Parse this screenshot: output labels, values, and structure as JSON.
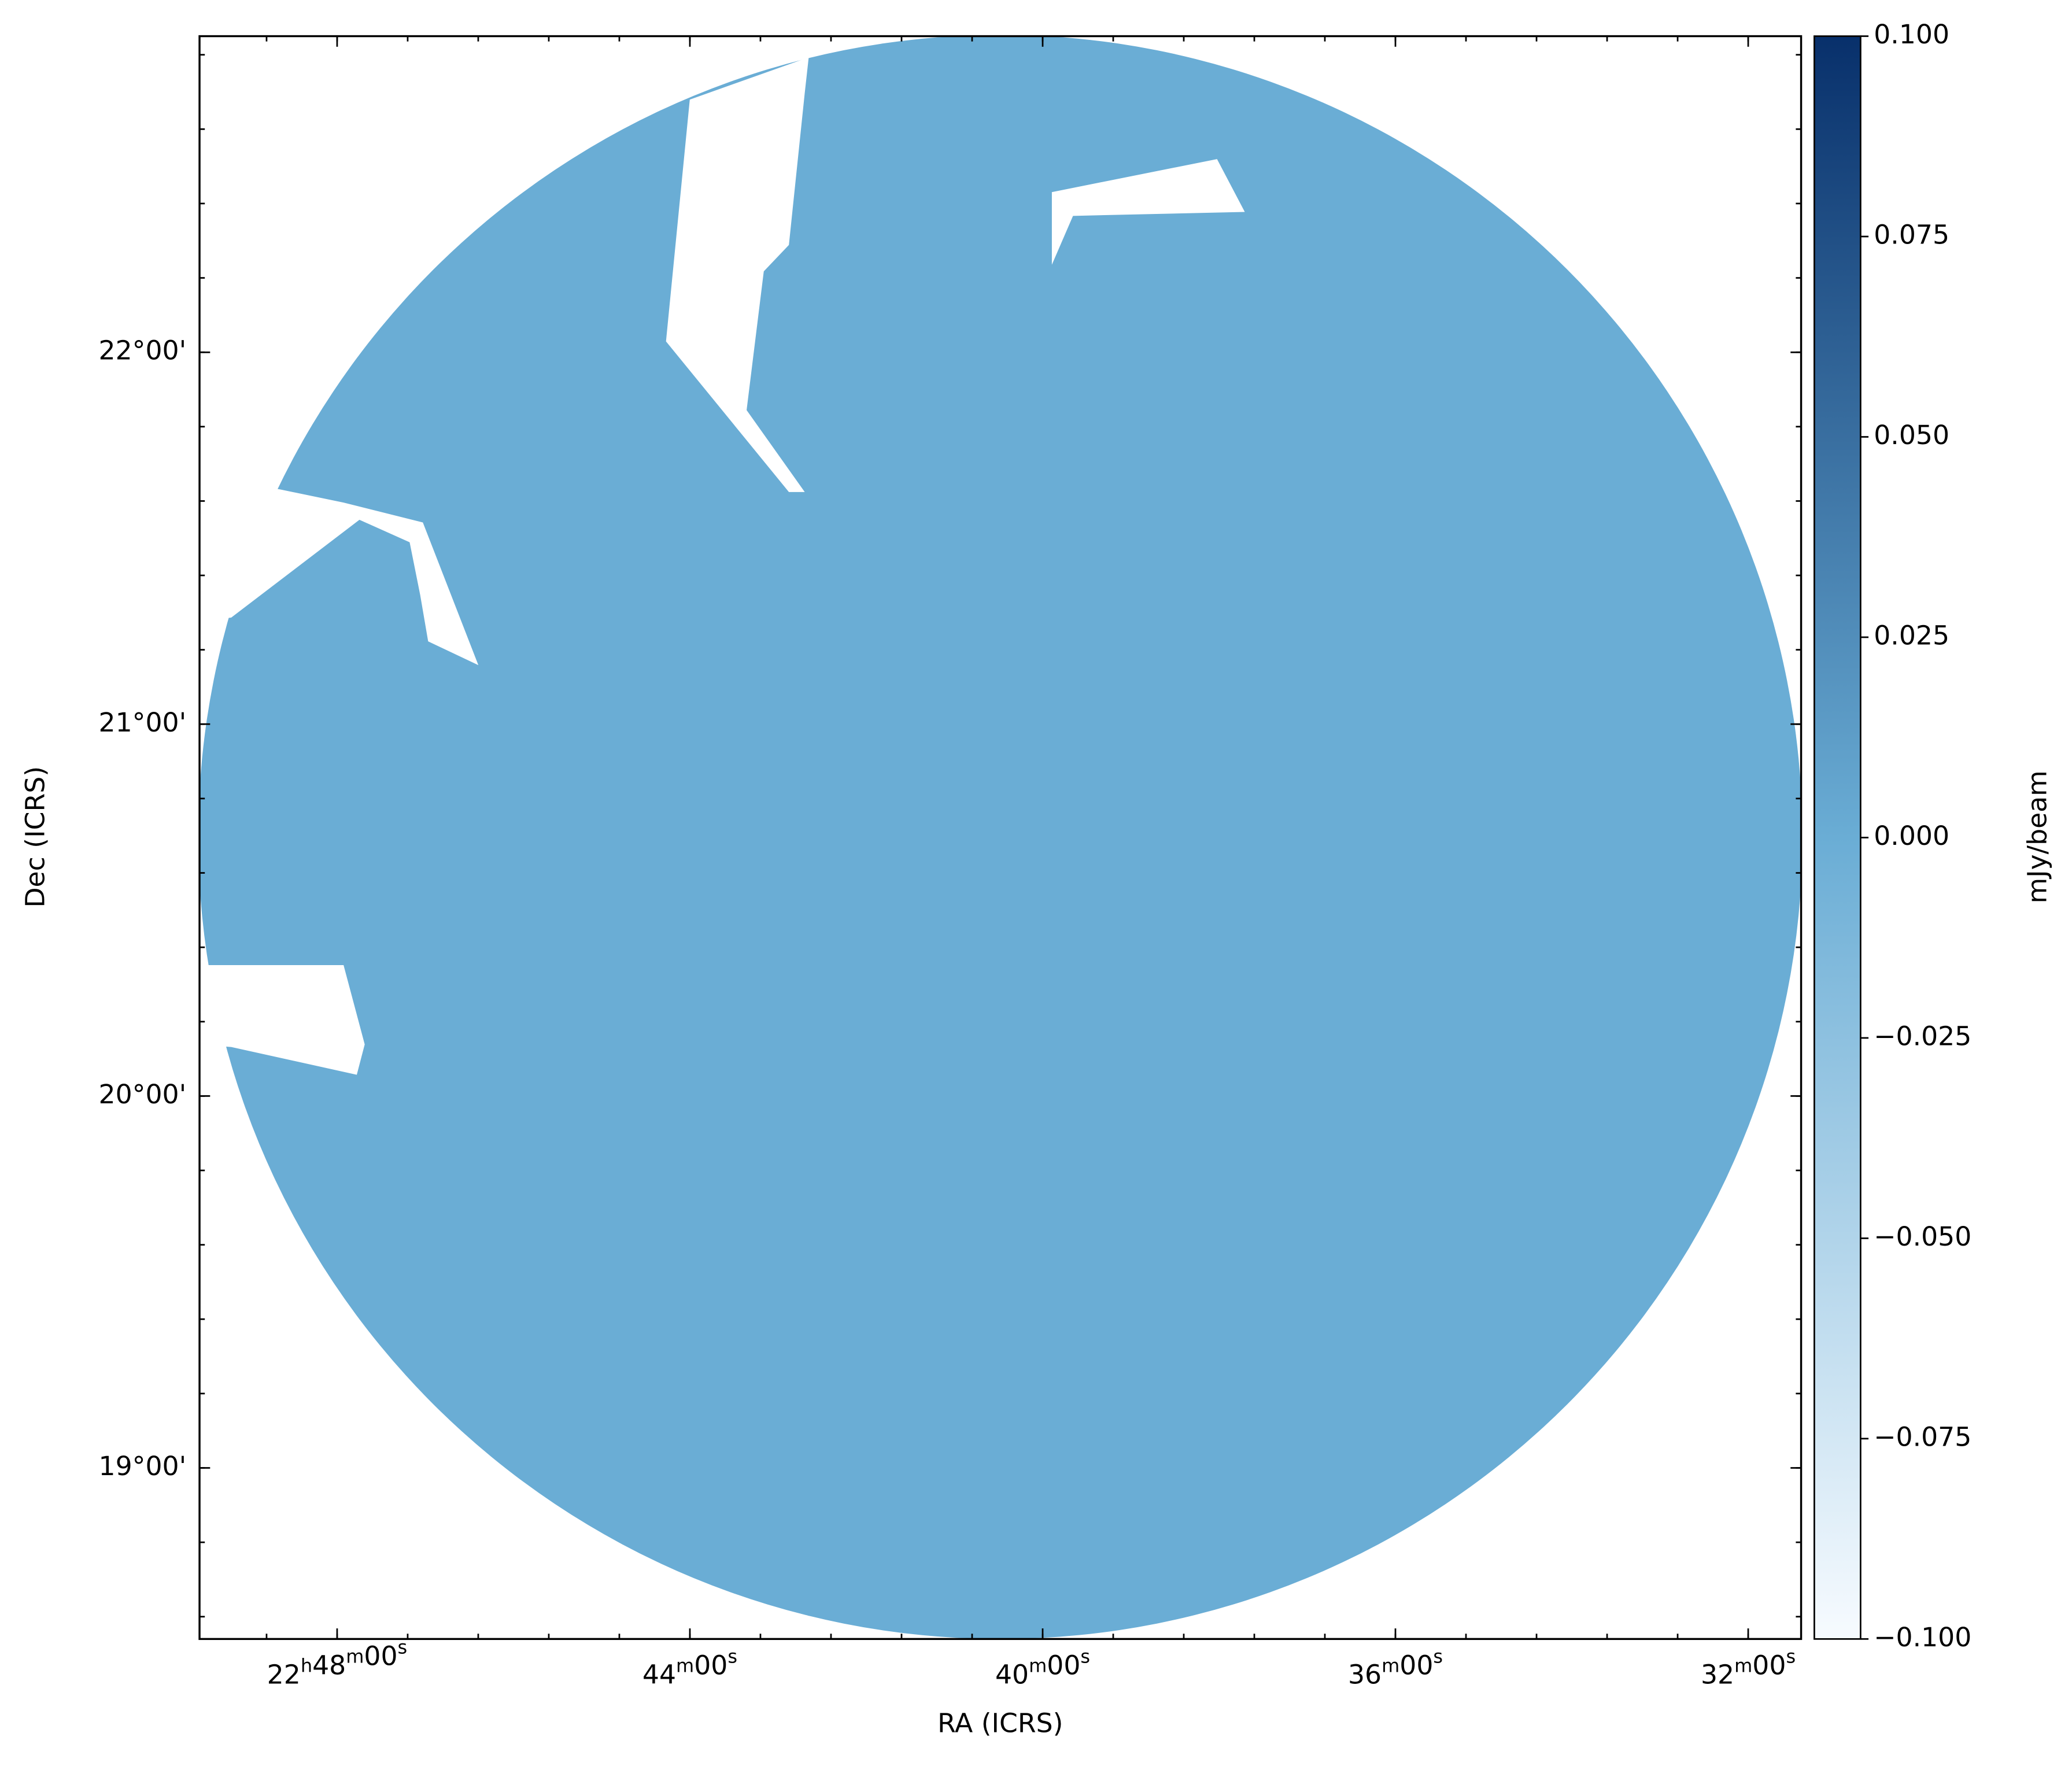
{
  "chart_data": {
    "type": "image",
    "xlabel": "RA (ICRS)",
    "ylabel": "Dec (ICRS)",
    "xlim": [
      342.39,
      337.85
    ],
    "xticks": [
      {
        "value": 342,
        "label": "22h48m00s"
      },
      {
        "value": 341,
        "label": "44m00s"
      },
      {
        "value": 340,
        "label": "40m00s"
      },
      {
        "value": 339,
        "label": "36m00s"
      },
      {
        "value": 338,
        "label": "32m00s"
      }
    ],
    "ylim": [
      18.54,
      22.85
    ],
    "yticks": [
      {
        "value": 22,
        "label": "22°00'"
      },
      {
        "value": 21,
        "label": "21°00'"
      },
      {
        "value": 20,
        "label": "20°00'"
      },
      {
        "value": 19,
        "label": "19°00'"
      }
    ],
    "colorbar": {
      "label": "mJy/beam",
      "lim": [
        -0.1,
        0.1
      ],
      "colors": [
        "#f7fbff",
        "#6aadd5",
        "#08306b"
      ],
      "ticks": [
        {
          "value": 0.1,
          "label": "0.100"
        },
        {
          "value": 0.075,
          "label": "0.075"
        },
        {
          "value": 0.05,
          "label": "0.050"
        },
        {
          "value": 0.025,
          "label": "0.025"
        },
        {
          "value": 0,
          "label": "0.000"
        },
        {
          "value": -0.025,
          "label": "−0.025"
        },
        {
          "value": -0.05,
          "label": "−0.050"
        },
        {
          "value": -0.075,
          "label": "−0.075"
        },
        {
          "value": -0.1,
          "label": "−0.100"
        }
      ]
    }
  }
}
